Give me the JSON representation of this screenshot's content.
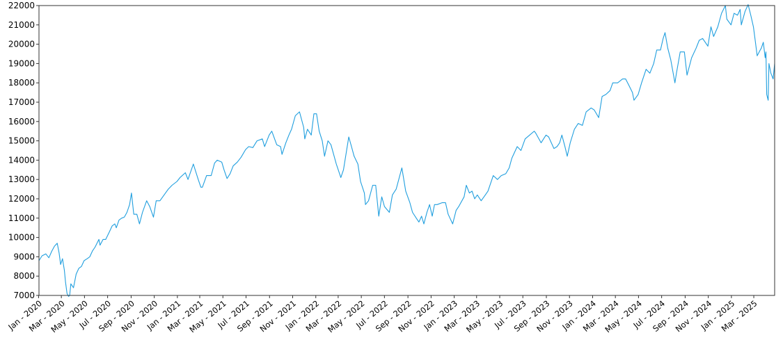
{
  "chart_data": {
    "type": "line",
    "title": "",
    "xlabel": "",
    "ylabel": "",
    "grid": false,
    "legend": false,
    "ylim": [
      7000,
      22000
    ],
    "xlim": [
      "2020-01-02",
      "2025-04-25"
    ],
    "yticks": [
      7000,
      8000,
      9000,
      10000,
      11000,
      12000,
      13000,
      14000,
      15000,
      16000,
      17000,
      18000,
      19000,
      20000,
      21000,
      22000
    ],
    "xticks": [
      {
        "date": "2020-01-01",
        "label": "Jan - 2020"
      },
      {
        "date": "2020-03-01",
        "label": "Mar - 2020"
      },
      {
        "date": "2020-05-01",
        "label": "May - 2020"
      },
      {
        "date": "2020-07-01",
        "label": "Jul - 2020"
      },
      {
        "date": "2020-09-01",
        "label": "Sep - 2020"
      },
      {
        "date": "2020-11-01",
        "label": "Nov - 2020"
      },
      {
        "date": "2021-01-01",
        "label": "Jan - 2021"
      },
      {
        "date": "2021-03-01",
        "label": "Mar - 2021"
      },
      {
        "date": "2021-05-01",
        "label": "May - 2021"
      },
      {
        "date": "2021-07-01",
        "label": "Jul - 2021"
      },
      {
        "date": "2021-09-01",
        "label": "Sep - 2021"
      },
      {
        "date": "2021-11-01",
        "label": "Nov - 2021"
      },
      {
        "date": "2022-01-01",
        "label": "Jan - 2022"
      },
      {
        "date": "2022-03-01",
        "label": "Mar - 2022"
      },
      {
        "date": "2022-05-01",
        "label": "May - 2022"
      },
      {
        "date": "2022-07-01",
        "label": "Jul - 2022"
      },
      {
        "date": "2022-09-01",
        "label": "Sep - 2022"
      },
      {
        "date": "2022-11-01",
        "label": "Nov - 2022"
      },
      {
        "date": "2023-01-01",
        "label": "Jan - 2023"
      },
      {
        "date": "2023-03-01",
        "label": "Mar - 2023"
      },
      {
        "date": "2023-05-01",
        "label": "May - 2023"
      },
      {
        "date": "2023-07-01",
        "label": "Jul - 2023"
      },
      {
        "date": "2023-09-01",
        "label": "Sep - 2023"
      },
      {
        "date": "2023-11-01",
        "label": "Nov - 2023"
      },
      {
        "date": "2024-01-01",
        "label": "Jan - 2024"
      },
      {
        "date": "2024-03-01",
        "label": "Mar - 2024"
      },
      {
        "date": "2024-05-01",
        "label": "May - 2024"
      },
      {
        "date": "2024-07-01",
        "label": "Jul - 2024"
      },
      {
        "date": "2024-09-01",
        "label": "Sep - 2024"
      },
      {
        "date": "2024-11-01",
        "label": "Nov - 2024"
      },
      {
        "date": "2025-01-01",
        "label": "Jan - 2025"
      },
      {
        "date": "2025-03-01",
        "label": "Mar - 2025"
      }
    ],
    "series": [
      {
        "color": "#1f9ede",
        "points": [
          [
            "2020-01-02",
            8800
          ],
          [
            "2020-01-10",
            9050
          ],
          [
            "2020-01-20",
            9150
          ],
          [
            "2020-01-28",
            8950
          ],
          [
            "2020-02-05",
            9300
          ],
          [
            "2020-02-12",
            9550
          ],
          [
            "2020-02-19",
            9700
          ],
          [
            "2020-02-24",
            9200
          ],
          [
            "2020-02-28",
            8600
          ],
          [
            "2020-03-04",
            8900
          ],
          [
            "2020-03-09",
            8300
          ],
          [
            "2020-03-12",
            7700
          ],
          [
            "2020-03-16",
            7100
          ],
          [
            "2020-03-20",
            6950
          ],
          [
            "2020-03-23",
            7000
          ],
          [
            "2020-03-26",
            7600
          ],
          [
            "2020-04-02",
            7400
          ],
          [
            "2020-04-09",
            8100
          ],
          [
            "2020-04-16",
            8400
          ],
          [
            "2020-04-23",
            8500
          ],
          [
            "2020-04-30",
            8800
          ],
          [
            "2020-05-08",
            8900
          ],
          [
            "2020-05-15",
            9000
          ],
          [
            "2020-05-22",
            9300
          ],
          [
            "2020-05-29",
            9500
          ],
          [
            "2020-06-08",
            9900
          ],
          [
            "2020-06-11",
            9600
          ],
          [
            "2020-06-19",
            9900
          ],
          [
            "2020-06-26",
            9900
          ],
          [
            "2020-07-06",
            10300
          ],
          [
            "2020-07-13",
            10600
          ],
          [
            "2020-07-20",
            10700
          ],
          [
            "2020-07-24",
            10500
          ],
          [
            "2020-07-31",
            10900
          ],
          [
            "2020-08-07",
            11000
          ],
          [
            "2020-08-14",
            11050
          ],
          [
            "2020-08-21",
            11300
          ],
          [
            "2020-08-28",
            11700
          ],
          [
            "2020-09-02",
            12300
          ],
          [
            "2020-09-08",
            11200
          ],
          [
            "2020-09-16",
            11200
          ],
          [
            "2020-09-23",
            10700
          ],
          [
            "2020-10-01",
            11300
          ],
          [
            "2020-10-12",
            11900
          ],
          [
            "2020-10-20",
            11600
          ],
          [
            "2020-10-30",
            11050
          ],
          [
            "2020-11-06",
            11900
          ],
          [
            "2020-11-16",
            11900
          ],
          [
            "2020-11-27",
            12200
          ],
          [
            "2020-12-08",
            12500
          ],
          [
            "2020-12-18",
            12700
          ],
          [
            "2020-12-31",
            12900
          ],
          [
            "2021-01-08",
            13100
          ],
          [
            "2021-01-22",
            13350
          ],
          [
            "2021-01-29",
            13000
          ],
          [
            "2021-02-12",
            13800
          ],
          [
            "2021-02-25",
            13000
          ],
          [
            "2021-03-04",
            12600
          ],
          [
            "2021-03-08",
            12600
          ],
          [
            "2021-03-19",
            13200
          ],
          [
            "2021-03-31",
            13200
          ],
          [
            "2021-04-09",
            13850
          ],
          [
            "2021-04-16",
            14000
          ],
          [
            "2021-04-28",
            13900
          ],
          [
            "2021-05-04",
            13500
          ],
          [
            "2021-05-12",
            13050
          ],
          [
            "2021-05-20",
            13300
          ],
          [
            "2021-05-28",
            13700
          ],
          [
            "2021-06-08",
            13900
          ],
          [
            "2021-06-18",
            14150
          ],
          [
            "2021-06-30",
            14550
          ],
          [
            "2021-07-08",
            14700
          ],
          [
            "2021-07-19",
            14650
          ],
          [
            "2021-07-30",
            15000
          ],
          [
            "2021-08-13",
            15100
          ],
          [
            "2021-08-19",
            14700
          ],
          [
            "2021-08-31",
            15300
          ],
          [
            "2021-09-07",
            15500
          ],
          [
            "2021-09-20",
            14800
          ],
          [
            "2021-09-30",
            14700
          ],
          [
            "2021-10-04",
            14300
          ],
          [
            "2021-10-14",
            14900
          ],
          [
            "2021-10-22",
            15300
          ],
          [
            "2021-10-29",
            15600
          ],
          [
            "2021-11-08",
            16300
          ],
          [
            "2021-11-19",
            16500
          ],
          [
            "2021-11-30",
            15700
          ],
          [
            "2021-12-03",
            15100
          ],
          [
            "2021-12-10",
            15600
          ],
          [
            "2021-12-20",
            15300
          ],
          [
            "2021-12-27",
            16400
          ],
          [
            "2022-01-03",
            16400
          ],
          [
            "2022-01-10",
            15500
          ],
          [
            "2022-01-18",
            15000
          ],
          [
            "2022-01-24",
            14200
          ],
          [
            "2022-02-02",
            15000
          ],
          [
            "2022-02-10",
            14800
          ],
          [
            "2022-02-24",
            13800
          ],
          [
            "2022-03-08",
            13100
          ],
          [
            "2022-03-15",
            13500
          ],
          [
            "2022-03-29",
            15200
          ],
          [
            "2022-04-05",
            14700
          ],
          [
            "2022-04-12",
            14200
          ],
          [
            "2022-04-22",
            13800
          ],
          [
            "2022-04-29",
            12900
          ],
          [
            "2022-05-09",
            12300
          ],
          [
            "2022-05-12",
            11700
          ],
          [
            "2022-05-20",
            11900
          ],
          [
            "2022-05-31",
            12700
          ],
          [
            "2022-06-08",
            12700
          ],
          [
            "2022-06-16",
            11100
          ],
          [
            "2022-06-24",
            12100
          ],
          [
            "2022-07-01",
            11600
          ],
          [
            "2022-07-14",
            11300
          ],
          [
            "2022-07-22",
            12200
          ],
          [
            "2022-08-01",
            12500
          ],
          [
            "2022-08-16",
            13600
          ],
          [
            "2022-08-26",
            12400
          ],
          [
            "2022-09-06",
            11800
          ],
          [
            "2022-09-13",
            11300
          ],
          [
            "2022-09-23",
            11000
          ],
          [
            "2022-09-30",
            10800
          ],
          [
            "2022-10-07",
            11100
          ],
          [
            "2022-10-13",
            10700
          ],
          [
            "2022-10-21",
            11300
          ],
          [
            "2022-10-28",
            11700
          ],
          [
            "2022-11-04",
            11100
          ],
          [
            "2022-11-10",
            11700
          ],
          [
            "2022-11-17",
            11700
          ],
          [
            "2022-11-30",
            11800
          ],
          [
            "2022-12-09",
            11800
          ],
          [
            "2022-12-16",
            11200
          ],
          [
            "2022-12-28",
            10700
          ],
          [
            "2023-01-06",
            11400
          ],
          [
            "2023-01-13",
            11600
          ],
          [
            "2023-01-27",
            12100
          ],
          [
            "2023-02-02",
            12700
          ],
          [
            "2023-02-10",
            12300
          ],
          [
            "2023-02-17",
            12400
          ],
          [
            "2023-02-24",
            12000
          ],
          [
            "2023-03-03",
            12200
          ],
          [
            "2023-03-13",
            11900
          ],
          [
            "2023-03-24",
            12200
          ],
          [
            "2023-03-31",
            12400
          ],
          [
            "2023-04-14",
            13200
          ],
          [
            "2023-04-25",
            13000
          ],
          [
            "2023-05-05",
            13200
          ],
          [
            "2023-05-17",
            13300
          ],
          [
            "2023-05-26",
            13600
          ],
          [
            "2023-06-02",
            14100
          ],
          [
            "2023-06-16",
            14700
          ],
          [
            "2023-06-26",
            14500
          ],
          [
            "2023-07-07",
            15100
          ],
          [
            "2023-07-19",
            15300
          ],
          [
            "2023-07-31",
            15500
          ],
          [
            "2023-08-04",
            15400
          ],
          [
            "2023-08-18",
            14900
          ],
          [
            "2023-08-31",
            15300
          ],
          [
            "2023-09-07",
            15200
          ],
          [
            "2023-09-21",
            14600
          ],
          [
            "2023-09-29",
            14700
          ],
          [
            "2023-10-06",
            14900
          ],
          [
            "2023-10-12",
            15300
          ],
          [
            "2023-10-20",
            14700
          ],
          [
            "2023-10-26",
            14200
          ],
          [
            "2023-11-03",
            14900
          ],
          [
            "2023-11-14",
            15600
          ],
          [
            "2023-11-24",
            15900
          ],
          [
            "2023-12-05",
            15800
          ],
          [
            "2023-12-15",
            16500
          ],
          [
            "2023-12-28",
            16700
          ],
          [
            "2024-01-05",
            16600
          ],
          [
            "2024-01-17",
            16200
          ],
          [
            "2024-01-26",
            17300
          ],
          [
            "2024-02-05",
            17400
          ],
          [
            "2024-02-16",
            17600
          ],
          [
            "2024-02-23",
            18000
          ],
          [
            "2024-03-07",
            18000
          ],
          [
            "2024-03-20",
            18200
          ],
          [
            "2024-03-28",
            18200
          ],
          [
            "2024-04-05",
            17900
          ],
          [
            "2024-04-15",
            17500
          ],
          [
            "2024-04-19",
            17100
          ],
          [
            "2024-04-30",
            17400
          ],
          [
            "2024-05-09",
            18000
          ],
          [
            "2024-05-21",
            18700
          ],
          [
            "2024-05-31",
            18500
          ],
          [
            "2024-06-10",
            19000
          ],
          [
            "2024-06-18",
            19700
          ],
          [
            "2024-06-28",
            19700
          ],
          [
            "2024-07-05",
            20300
          ],
          [
            "2024-07-10",
            20600
          ],
          [
            "2024-07-17",
            19800
          ],
          [
            "2024-07-25",
            19200
          ],
          [
            "2024-08-05",
            18000
          ],
          [
            "2024-08-09",
            18500
          ],
          [
            "2024-08-19",
            19600
          ],
          [
            "2024-08-30",
            19600
          ],
          [
            "2024-09-06",
            18400
          ],
          [
            "2024-09-18",
            19300
          ],
          [
            "2024-09-30",
            19800
          ],
          [
            "2024-10-08",
            20200
          ],
          [
            "2024-10-17",
            20300
          ],
          [
            "2024-10-31",
            19900
          ],
          [
            "2024-11-08",
            20900
          ],
          [
            "2024-11-15",
            20400
          ],
          [
            "2024-11-26",
            20900
          ],
          [
            "2024-12-06",
            21600
          ],
          [
            "2024-12-16",
            22000
          ],
          [
            "2024-12-20",
            21300
          ],
          [
            "2024-12-31",
            21000
          ],
          [
            "2025-01-08",
            21600
          ],
          [
            "2025-01-17",
            21500
          ],
          [
            "2025-01-24",
            21800
          ],
          [
            "2025-01-27",
            21000
          ],
          [
            "2025-02-06",
            21700
          ],
          [
            "2025-02-14",
            22050
          ],
          [
            "2025-02-21",
            21500
          ],
          [
            "2025-02-28",
            20900
          ],
          [
            "2025-03-04",
            20300
          ],
          [
            "2025-03-10",
            19400
          ],
          [
            "2025-03-18",
            19700
          ],
          [
            "2025-03-21",
            19800
          ],
          [
            "2025-03-26",
            20100
          ],
          [
            "2025-03-31",
            19300
          ],
          [
            "2025-04-02",
            19600
          ],
          [
            "2025-04-04",
            17400
          ],
          [
            "2025-04-08",
            17100
          ],
          [
            "2025-04-10",
            19000
          ],
          [
            "2025-04-15",
            18500
          ],
          [
            "2025-04-21",
            18200
          ],
          [
            "2025-04-25",
            19000
          ]
        ]
      }
    ]
  }
}
